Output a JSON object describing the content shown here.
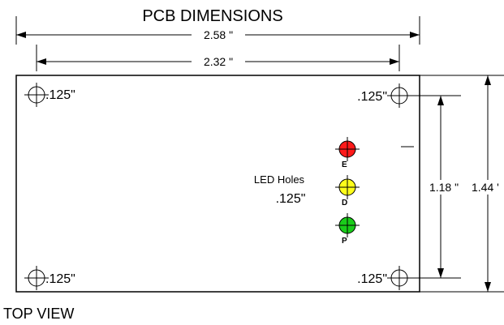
{
  "title": "PCB DIMENSIONS",
  "dimensions": {
    "width_outer": "2.58 \"",
    "width_holes": "2.32 \"",
    "height_holes": "1.18 \"",
    "height_outer": "1.44 '"
  },
  "mounting_holes": {
    "top_left": ".125\"",
    "top_right": ".125\"",
    "bottom_left": ".125\"",
    "bottom_right": ".125\""
  },
  "led_holes": {
    "label": "LED Holes",
    "size": ".125\"",
    "leds": [
      {
        "letter": "E",
        "color": "#ff1a1a"
      },
      {
        "letter": "D",
        "color": "#ffff1a"
      },
      {
        "letter": "P",
        "color": "#1acc1a"
      }
    ]
  },
  "view_label": "TOP VIEW"
}
